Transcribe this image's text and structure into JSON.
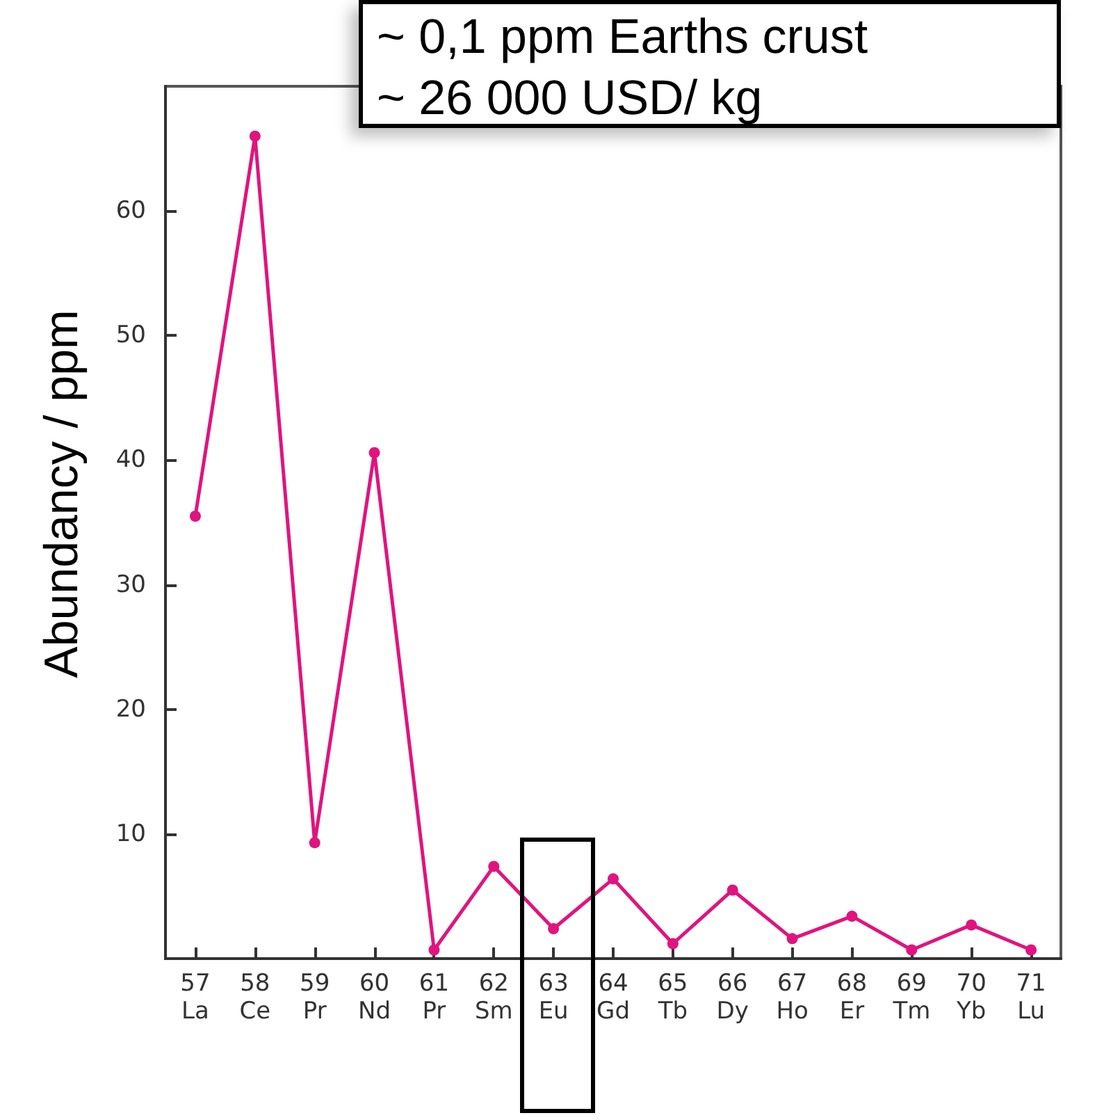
{
  "chart_data": {
    "type": "line",
    "ylabel": "Abundancy / ppm",
    "annotations": [
      "~ 0,1 ppm Earths crust",
      "~ 26 000 USD/ kg"
    ],
    "categories": [
      "57\nLa",
      "58\nCe",
      "59\nPr",
      "60\nNd",
      "61\nPr",
      "62\nSm",
      "63\nEu",
      "64\nGd",
      "65\nTb",
      "66\nDy",
      "67\nHo",
      "68\nEr",
      "69\nTm",
      "70\nYb",
      "71\nLu"
    ],
    "series": [
      {
        "color": "#e0147e",
        "values": [
          35.5,
          66,
          9.3,
          40.6,
          0.7,
          7.4,
          2.4,
          6.4,
          1.2,
          5.5,
          1.6,
          3.4,
          0.7,
          2.7,
          0.7
        ]
      }
    ],
    "ylim": [
      0,
      70
    ],
    "yticks": [
      10,
      20,
      30,
      40,
      50,
      60
    ],
    "grid": false,
    "marker": "circle",
    "line_style": "solid"
  }
}
